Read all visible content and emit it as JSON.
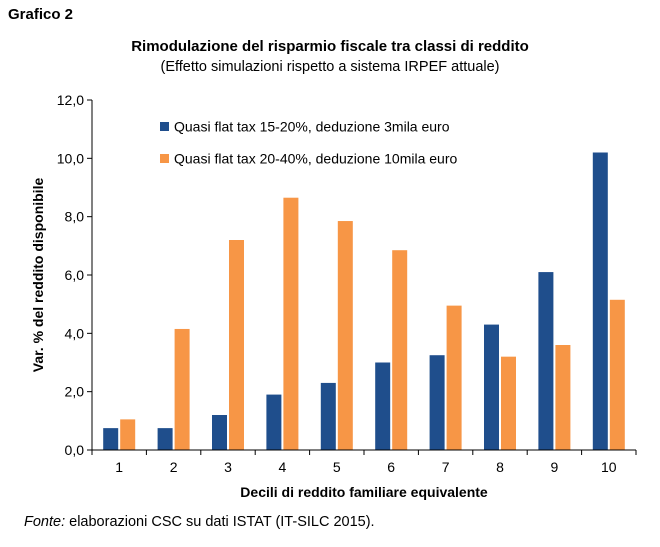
{
  "figure_label": "Grafico 2",
  "source": {
    "label": "Fonte:",
    "text": " elaborazioni CSC su dati ISTAT (IT-SILC 2015)."
  },
  "chart_data": {
    "type": "bar",
    "title": "Rimodulazione del risparmio fiscale tra classi di reddito",
    "subtitle": "(Effetto simulazioni rispetto a sistema IRPEF attuale)",
    "xlabel": "Decili di reddito familiare equivalente",
    "ylabel": "Var. % del  reddito disponibile",
    "categories": [
      "1",
      "2",
      "3",
      "4",
      "5",
      "6",
      "7",
      "8",
      "9",
      "10"
    ],
    "ylim": [
      0,
      12
    ],
    "yticks": [
      "0,0",
      "2,0",
      "4,0",
      "6,0",
      "8,0",
      "10,0",
      "12,0"
    ],
    "grid": false,
    "legend_position": "top-left",
    "series": [
      {
        "name": "Quasi flat tax 15-20%, deduzione 3mila euro",
        "color": "#1f4e8c",
        "values": [
          0.75,
          0.75,
          1.2,
          1.9,
          2.3,
          3.0,
          3.25,
          4.3,
          6.1,
          10.2
        ]
      },
      {
        "name": "Quasi flat tax 20-40%, deduzione 10mila euro",
        "color": "#f79646",
        "values": [
          1.05,
          4.15,
          7.2,
          8.65,
          7.85,
          6.85,
          4.95,
          3.2,
          3.6,
          5.15
        ]
      }
    ]
  }
}
